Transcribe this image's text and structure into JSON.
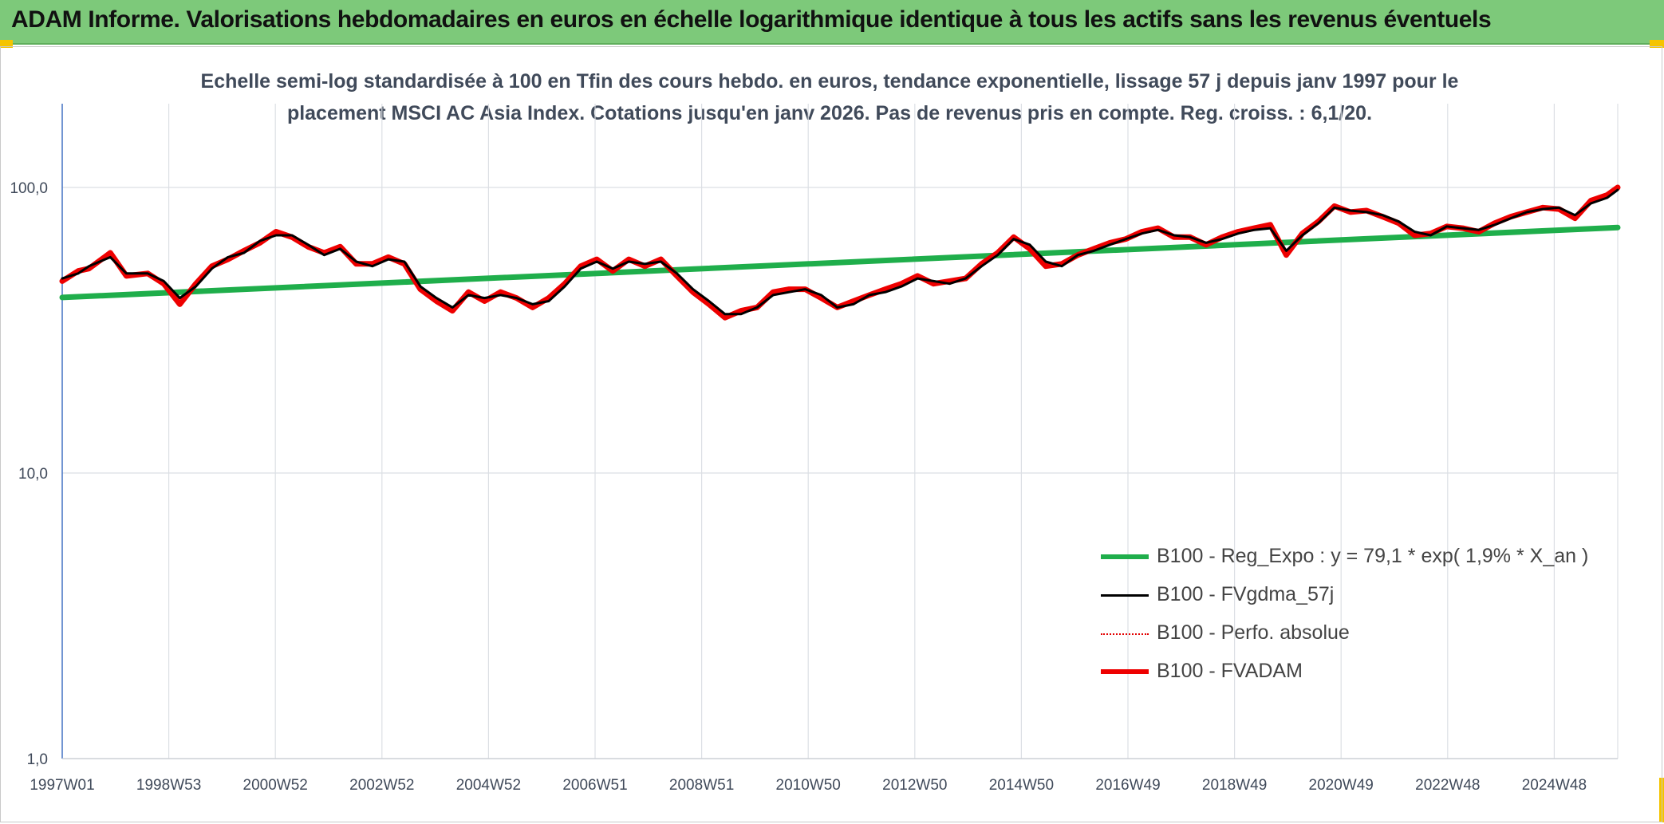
{
  "header": {
    "title": "ADAM Informe. Valorisations hebdomadaires en euros en échelle logarithmique identique à tous les actifs sans les revenus éventuels"
  },
  "chart_data": {
    "type": "line",
    "title_line1": "Echelle semi-log standardisée à 100 en Tfin des cours hebdo. en euros, tendance exponentielle, lissage 57 j depuis janv 1997 pour le",
    "title_line2": "placement MSCI AC Asia Index. Cotations jusqu'en janv 2026. Pas de revenus pris en compte. Reg. croiss. : 6,1/20.",
    "y_scale": "log",
    "ylim": [
      1,
      200
    ],
    "y_ticks": [
      {
        "value": 1,
        "label": "1,0"
      },
      {
        "value": 10,
        "label": "10,0"
      },
      {
        "value": 100,
        "label": "100,0"
      }
    ],
    "x_ticks": [
      "1997W01",
      "1998W53",
      "2000W52",
      "2002W52",
      "2004W52",
      "2006W51",
      "2008W51",
      "2010W50",
      "2012W50",
      "2014W50",
      "2016W49",
      "2018W49",
      "2020W49",
      "2022W48",
      "2024W48"
    ],
    "x_range": [
      1997.0,
      2026.1
    ],
    "grid": "vertical gridlines at x ticks, horizontal gridlines at y ticks",
    "legend_position": "lower-right",
    "series": [
      {
        "name": "B100 - Reg_Expo : y = 79,1 * exp( 1,9% *  X_an )",
        "color": "#1fae4b",
        "style": "solid-thick",
        "x": [
          1997.0,
          2026.1
        ],
        "y": [
          41.2,
          72.4
        ]
      },
      {
        "name": "B100 - FVgdma_57j",
        "color": "#000000",
        "style": "solid-thin",
        "x": [
          1997.0,
          1997.3,
          1997.5,
          1997.9,
          1998.2,
          1998.6,
          1998.9,
          1999.2,
          1999.5,
          1999.8,
          2000.1,
          2000.4,
          2000.7,
          2001.0,
          2001.3,
          2001.6,
          2001.9,
          2002.2,
          2002.5,
          2002.8,
          2003.1,
          2003.4,
          2003.7,
          2004.0,
          2004.3,
          2004.6,
          2004.9,
          2005.2,
          2005.5,
          2005.8,
          2006.1,
          2006.4,
          2006.7,
          2007.0,
          2007.3,
          2007.6,
          2007.9,
          2008.2,
          2008.5,
          2008.8,
          2009.1,
          2009.4,
          2009.7,
          2010.0,
          2010.3,
          2010.6,
          2010.9,
          2011.2,
          2011.5,
          2011.8,
          2012.1,
          2012.4,
          2012.7,
          2013.0,
          2013.3,
          2013.6,
          2013.9,
          2014.2,
          2014.5,
          2014.8,
          2015.1,
          2015.4,
          2015.7,
          2016.0,
          2016.3,
          2016.6,
          2016.9,
          2017.2,
          2017.5,
          2017.8,
          2018.1,
          2018.4,
          2018.7,
          2019.0,
          2019.3,
          2019.6,
          2019.9,
          2020.2,
          2020.5,
          2020.8,
          2021.1,
          2021.4,
          2021.7,
          2022.0,
          2022.3,
          2022.6,
          2022.9,
          2023.2,
          2023.5,
          2023.8,
          2024.1,
          2024.4,
          2024.7,
          2025.0,
          2025.3,
          2025.6,
          2025.9,
          2026.1
        ],
        "y": [
          48,
          50,
          53,
          57,
          50,
          50,
          47,
          41,
          45,
          52,
          57,
          59,
          65,
          68,
          68,
          63,
          58,
          61,
          55,
          53,
          56,
          55,
          45,
          41,
          38,
          42,
          41,
          42,
          41,
          39,
          40,
          45,
          52,
          55,
          52,
          55,
          54,
          55,
          50,
          44,
          40,
          36,
          36,
          38,
          42,
          43,
          44,
          42,
          38,
          39,
          42,
          43,
          45,
          48,
          47,
          46,
          48,
          53,
          58,
          66,
          63,
          55,
          53,
          58,
          60,
          63,
          66,
          69,
          71,
          68,
          67,
          64,
          66,
          69,
          71,
          72,
          60,
          68,
          75,
          85,
          83,
          82,
          80,
          76,
          70,
          68,
          73,
          72,
          71,
          74,
          78,
          82,
          84,
          85,
          80,
          88,
          92,
          98
        ]
      },
      {
        "name": "B100 - Perfo. absolue",
        "color": "#e30000",
        "style": "dotted",
        "x": [],
        "y": []
      },
      {
        "name": "B100 - FVADAM",
        "color": "#ee0000",
        "style": "solid-thick",
        "x": [
          1997.0,
          1997.3,
          1997.5,
          1997.9,
          1998.2,
          1998.6,
          1998.9,
          1999.2,
          1999.5,
          1999.8,
          2000.1,
          2000.4,
          2000.7,
          2001.0,
          2001.3,
          2001.6,
          2001.9,
          2002.2,
          2002.5,
          2002.8,
          2003.1,
          2003.4,
          2003.7,
          2004.0,
          2004.3,
          2004.6,
          2004.9,
          2005.2,
          2005.5,
          2005.8,
          2006.1,
          2006.4,
          2006.7,
          2007.0,
          2007.3,
          2007.6,
          2007.9,
          2008.2,
          2008.5,
          2008.8,
          2009.1,
          2009.4,
          2009.7,
          2010.0,
          2010.3,
          2010.6,
          2010.9,
          2011.2,
          2011.5,
          2011.8,
          2012.1,
          2012.4,
          2012.7,
          2013.0,
          2013.3,
          2013.6,
          2013.9,
          2014.2,
          2014.5,
          2014.8,
          2015.1,
          2015.4,
          2015.7,
          2016.0,
          2016.3,
          2016.6,
          2016.9,
          2017.2,
          2017.5,
          2017.8,
          2018.1,
          2018.4,
          2018.7,
          2019.0,
          2019.3,
          2019.6,
          2019.9,
          2020.2,
          2020.5,
          2020.8,
          2021.1,
          2021.4,
          2021.7,
          2022.0,
          2022.3,
          2022.6,
          2022.9,
          2023.2,
          2023.5,
          2023.8,
          2024.1,
          2024.4,
          2024.7,
          2025.0,
          2025.3,
          2025.6,
          2025.9,
          2026.1
        ],
        "y": [
          47,
          51,
          52,
          59,
          49,
          50,
          46,
          39,
          46,
          53,
          56,
          60,
          64,
          70,
          67,
          62,
          59,
          62,
          54,
          54,
          57,
          54,
          44,
          40,
          37,
          43,
          40,
          43,
          41,
          38,
          41,
          46,
          53,
          56,
          51,
          56,
          53,
          56,
          49,
          43,
          39,
          35,
          37,
          38,
          43,
          44,
          44,
          41,
          38,
          40,
          42,
          44,
          46,
          49,
          46,
          47,
          48,
          54,
          59,
          67,
          61,
          53,
          54,
          58,
          61,
          64,
          66,
          70,
          72,
          67,
          67,
          63,
          67,
          70,
          72,
          74,
          58,
          69,
          76,
          86,
          82,
          83,
          79,
          75,
          68,
          69,
          73,
          72,
          70,
          75,
          79,
          82,
          85,
          84,
          78,
          90,
          94,
          100
        ]
      }
    ]
  },
  "legend": {
    "items": [
      {
        "label": "B100 - Reg_Expo : y = 79,1 * exp( 1,9% *  X_an )",
        "color": "#1fae4b"
      },
      {
        "label": "B100 - FVgdma_57j",
        "color": "#000000"
      },
      {
        "label": "B100 - Perfo. absolue",
        "color": "#e30000"
      },
      {
        "label": "B100 - FVADAM",
        "color": "#ee0000"
      }
    ]
  }
}
